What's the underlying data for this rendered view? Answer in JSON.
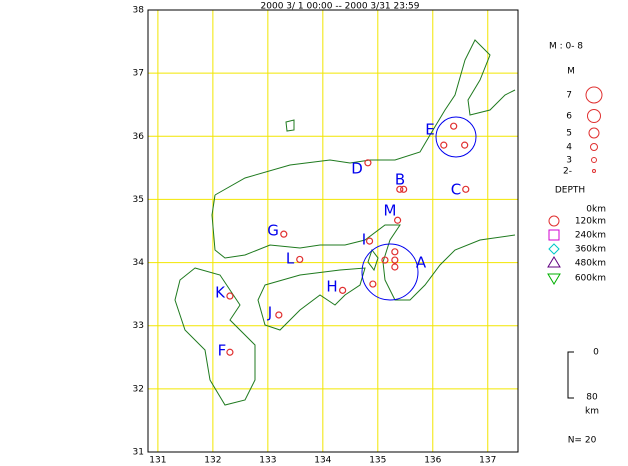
{
  "chart_data": {
    "type": "scatter",
    "title": "2000  3/ 1 00:00 -- 2000 3/31 23:59",
    "x": [
      136.38,
      136.2,
      136.58,
      134.82,
      135.4,
      135.47,
      136.6,
      135.36,
      134.85,
      133.29,
      133.58,
      135.13,
      135.31,
      135.31,
      135.31,
      134.91,
      134.36,
      132.31,
      133.2,
      132.31
    ],
    "y": [
      36.16,
      35.86,
      35.86,
      35.58,
      35.16,
      35.16,
      35.16,
      34.67,
      34.34,
      34.45,
      34.05,
      34.04,
      34.17,
      34.04,
      33.93,
      33.66,
      33.56,
      33.47,
      33.17,
      32.58
    ],
    "color": "#e03030",
    "xlim": [
      130.82,
      137.55
    ],
    "ylim": [
      31,
      38
    ],
    "xticks": [
      131,
      132,
      133,
      134,
      135,
      136,
      137
    ],
    "yticks": [
      31,
      32,
      33,
      34,
      35,
      36,
      37,
      38
    ],
    "grid": true,
    "region_labels": [
      "E",
      "D",
      "B",
      "C",
      "M",
      "I",
      "G",
      "L",
      "A",
      "H",
      "K",
      "J",
      "F"
    ],
    "magnitude_legend": {
      "title": "M : 0- 8",
      "heading": "M",
      "items": [
        "7",
        "6",
        "5",
        "4",
        "3",
        "2-"
      ]
    },
    "depth_legend": {
      "title": "DEPTH",
      "items": [
        "0km",
        "120km",
        "240km",
        "360km",
        "480km",
        "600km"
      ]
    },
    "scale": {
      "top": "0",
      "bottom": "80",
      "unit": "km"
    },
    "count": "N= 20"
  }
}
